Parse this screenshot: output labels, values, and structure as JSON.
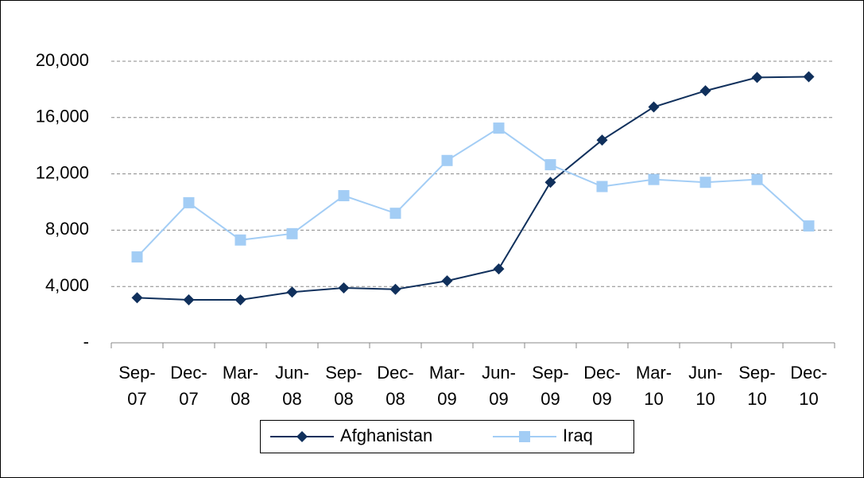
{
  "chart_data": {
    "type": "line",
    "categories": [
      "Sep-07",
      "Dec-07",
      "Mar-08",
      "Jun-08",
      "Sep-08",
      "Dec-08",
      "Mar-09",
      "Jun-09",
      "Sep-09",
      "Dec-09",
      "Mar-10",
      "Jun-10",
      "Sep-10",
      "Dec-10"
    ],
    "series": [
      {
        "name": "Afghanistan",
        "color": "#10305c",
        "marker": "diamond",
        "values": [
          3200,
          3050,
          3050,
          3600,
          3900,
          3800,
          4400,
          5250,
          11400,
          14400,
          16750,
          17900,
          18850,
          18900
        ]
      },
      {
        "name": "Iraq",
        "color": "#a3cdf5",
        "marker": "square",
        "values": [
          6100,
          9950,
          7300,
          7750,
          10450,
          9200,
          12950,
          15250,
          12650,
          11100,
          11600,
          11400,
          11600,
          8300
        ]
      }
    ],
    "ylim": [
      0,
      20000
    ],
    "yticks": [
      {
        "value": 0,
        "label": "-"
      },
      {
        "value": 4000,
        "label": "4,000"
      },
      {
        "value": 8000,
        "label": "8,000"
      },
      {
        "value": 12000,
        "label": "12,000"
      },
      {
        "value": 16000,
        "label": "16,000"
      },
      {
        "value": 20000,
        "label": "20,000"
      }
    ],
    "grid": true,
    "legend": "bottom"
  }
}
